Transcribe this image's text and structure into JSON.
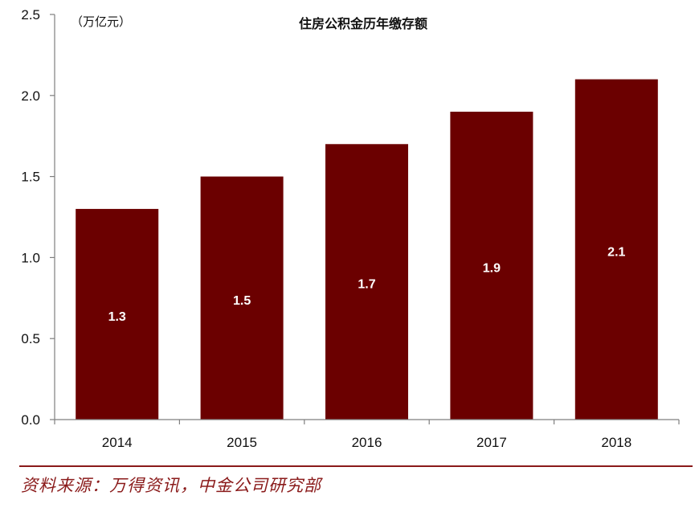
{
  "chart_data": {
    "type": "bar",
    "title": "住房公积金历年缴存额",
    "unit": "（万亿元）",
    "categories": [
      "2014",
      "2015",
      "2016",
      "2017",
      "2018"
    ],
    "values": [
      1.3,
      1.5,
      1.7,
      1.9,
      2.1
    ],
    "data_labels": [
      "1.3",
      "1.5",
      "1.7",
      "1.9",
      "2.1"
    ],
    "yticks": [
      "0.0",
      "0.5",
      "1.0",
      "1.5",
      "2.0",
      "2.5"
    ],
    "ylim": [
      0,
      2.5
    ],
    "grid": false,
    "legend": "none",
    "bar_color": "#6b0000",
    "axis_color": "#7f7f7f"
  },
  "source": {
    "text": "资料来源：万得资讯，中金公司研究部",
    "color": "#8a1a1a"
  }
}
